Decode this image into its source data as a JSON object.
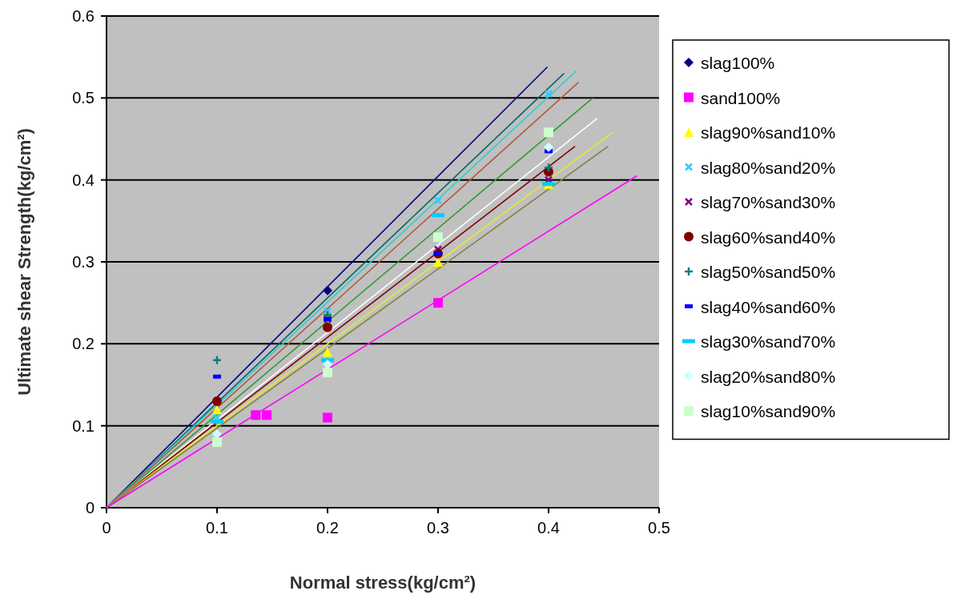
{
  "chart_data": {
    "type": "scatter",
    "xlabel": "Normal stress(kg/cm²)",
    "ylabel": "Ultimate shear   Strength(kg/cm²)",
    "xlim": [
      0,
      0.5
    ],
    "ylim": [
      0,
      0.6
    ],
    "xticks": [
      0,
      0.1,
      0.2,
      0.3,
      0.4,
      0.5
    ],
    "yticks": [
      0,
      0.1,
      0.2,
      0.3,
      0.4,
      0.5,
      0.6
    ],
    "grid": "y",
    "legend": "right",
    "x": [
      0.1,
      0.2,
      0.3,
      0.4
    ],
    "series": [
      {
        "name": "slag100%",
        "color": "#000080",
        "marker": "diamond",
        "values": [
          null,
          0.265,
          null,
          null
        ]
      },
      {
        "name": "sand100%",
        "color": "#ff00ff",
        "marker": "square",
        "x": [
          0.135,
          0.145,
          0.2,
          0.3
        ],
        "values": [
          0.113,
          0.113,
          0.11,
          0.25
        ]
      },
      {
        "name": "slag90%sand10%",
        "color": "#ffff00",
        "marker": "triangle",
        "values": [
          0.12,
          0.19,
          0.3,
          0.395
        ]
      },
      {
        "name": "slag80%sand20%",
        "color": "#33ccff",
        "marker": "cross",
        "values": [
          0.11,
          0.24,
          0.375,
          0.505
        ]
      },
      {
        "name": "slag70%sand30%",
        "color": "#800080",
        "marker": "cross",
        "values": [
          null,
          0.23,
          0.315,
          0.4
        ]
      },
      {
        "name": "slag60%sand40%",
        "color": "#800000",
        "marker": "circle",
        "values": [
          0.13,
          0.22,
          0.31,
          0.41
        ]
      },
      {
        "name": "slag50%sand50%",
        "color": "#008080",
        "marker": "cross",
        "values": [
          0.18,
          0.235,
          null,
          0.415
        ]
      },
      {
        "name": "slag40%sand60%",
        "color": "#0000ff",
        "marker": "square",
        "values": [
          0.16,
          0.23,
          0.31,
          0.435
        ]
      },
      {
        "name": "slag30%sand70%",
        "color": "#00ccff",
        "marker": "square",
        "values": [
          0.105,
          0.18,
          0.357,
          0.395
        ]
      },
      {
        "name": "slag20%sand80%",
        "color": "#ccffff",
        "marker": "diamond",
        "values": [
          0.09,
          0.175,
          null,
          0.44
        ]
      },
      {
        "name": "slag10%sand90%",
        "color": "#ccffcc",
        "marker": "square",
        "values": [
          0.08,
          0.165,
          0.33,
          0.458
        ]
      },
      {
        "type": "line",
        "color": "#000080",
        "marker": "none",
        "x": [
          0,
          0.399
        ],
        "values": [
          0,
          0.538
        ]
      },
      {
        "type": "line",
        "color": "#006666",
        "marker": "none",
        "x": [
          0,
          0.414
        ],
        "values": [
          0,
          0.53
        ]
      },
      {
        "type": "line",
        "color": "#33cccc",
        "marker": "none",
        "x": [
          0,
          0.425
        ],
        "values": [
          0,
          0.533
        ]
      },
      {
        "type": "line",
        "color": "#b05a3c",
        "marker": "none",
        "x": [
          0,
          0.427
        ],
        "values": [
          0,
          0.519
        ]
      },
      {
        "type": "line",
        "color": "#339933",
        "marker": "none",
        "x": [
          0,
          0.44
        ],
        "values": [
          0,
          0.5
        ]
      },
      {
        "type": "line",
        "color": "#ffffff",
        "marker": "none",
        "x": [
          0,
          0.444
        ],
        "values": [
          0,
          0.475
        ]
      },
      {
        "type": "line",
        "color": "#800000",
        "marker": "none",
        "x": [
          0,
          0.424
        ],
        "values": [
          0,
          0.441
        ]
      },
      {
        "type": "line",
        "color": "#e8e830",
        "marker": "none",
        "x": [
          0,
          0.458
        ],
        "values": [
          0,
          0.458
        ]
      },
      {
        "type": "line",
        "color": "#808040",
        "marker": "none",
        "x": [
          0,
          0.454
        ],
        "values": [
          0,
          0.441
        ]
      },
      {
        "type": "line",
        "color": "#ff00ff",
        "marker": "none",
        "x": [
          0,
          0.48
        ],
        "values": [
          0,
          0.405
        ]
      }
    ]
  }
}
